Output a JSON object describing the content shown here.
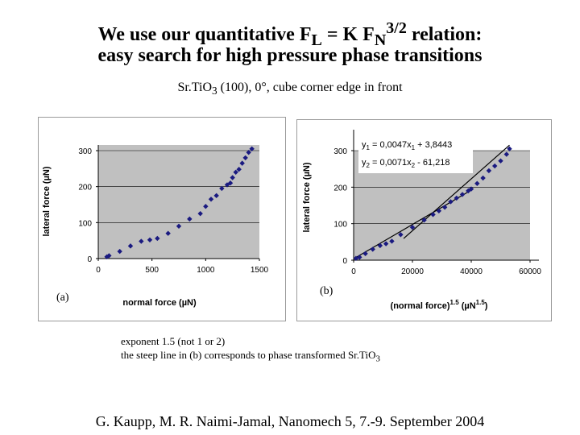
{
  "title_line1": {
    "pre": "We use our quantitative F",
    "sub1": "L",
    "mid": " = K F",
    "sub2": "N",
    "sup": "3/2",
    "post": " relation:"
  },
  "title_line2": "easy search for high pressure phase transitions",
  "subtitle": {
    "pre": "Sr.TiO",
    "sub": "3",
    "post": " (100), 0°, cube corner edge in front"
  },
  "notes": {
    "line1": "exponent 1.5 (not 1 or 2)",
    "line2_pre": "the steep line in (b) corresponds to phase transformed Sr.TiO",
    "line2_sub": "3"
  },
  "footer": "G. Kaupp, M. R. Naimi-Jamal, Nanomech 5, 7.-9. September 2004",
  "colors": {
    "plot_bg": "#c0c0c0",
    "marker": "#1a1a80",
    "fit_line": "#000000"
  },
  "chart_data": [
    {
      "panel_label": "(a)",
      "type": "scatter",
      "xlabel": "normal force (µN)",
      "ylabel": "lateral force (µN)",
      "xlim": [
        0,
        1500
      ],
      "ylim": [
        0,
        300
      ],
      "x_ticks": [
        "0",
        "500",
        "1000",
        "1500"
      ],
      "y_ticks": [
        "0",
        "100",
        "200",
        "300"
      ],
      "marker": "diamond",
      "points": [
        [
          80,
          5
        ],
        [
          100,
          8
        ],
        [
          200,
          20
        ],
        [
          300,
          35
        ],
        [
          400,
          48
        ],
        [
          480,
          52
        ],
        [
          550,
          56
        ],
        [
          650,
          70
        ],
        [
          750,
          90
        ],
        [
          850,
          110
        ],
        [
          950,
          125
        ],
        [
          1000,
          145
        ],
        [
          1050,
          165
        ],
        [
          1100,
          175
        ],
        [
          1150,
          195
        ],
        [
          1200,
          205
        ],
        [
          1230,
          210
        ],
        [
          1250,
          225
        ],
        [
          1280,
          240
        ],
        [
          1310,
          248
        ],
        [
          1340,
          265
        ],
        [
          1370,
          280
        ],
        [
          1400,
          295
        ],
        [
          1430,
          305
        ]
      ]
    },
    {
      "panel_label": "(b)",
      "type": "scatter",
      "xlabel": "(normal force)^1.5 (µN^1.5)",
      "ylabel": "lateral force (µN)",
      "xlim": [
        0,
        60000
      ],
      "ylim": [
        0,
        300
      ],
      "x_ticks": [
        "0",
        "20000",
        "40000",
        "60000"
      ],
      "y_ticks": [
        "0",
        "100",
        "200",
        "300"
      ],
      "marker": "diamond",
      "equations": {
        "eq1": {
          "pre": "y",
          "sub": "1",
          "mid": " = 0,0047x",
          "sub2": "1",
          "post": " + 3,8443"
        },
        "eq2": {
          "pre": "y",
          "sub": "2",
          "mid": " = 0,0071x",
          "sub2": "2",
          "post": " - 61,218"
        }
      },
      "fit_lines": [
        {
          "name": "y1",
          "slope": 0.0047,
          "intercept": 3.8443,
          "x_range": [
            0,
            40000
          ]
        },
        {
          "name": "y2",
          "slope": 0.0071,
          "intercept": -61.218,
          "x_range": [
            17000,
            53000
          ]
        }
      ],
      "points": [
        [
          800,
          5
        ],
        [
          2000,
          8
        ],
        [
          4000,
          18
        ],
        [
          6500,
          30
        ],
        [
          9000,
          40
        ],
        [
          11000,
          45
        ],
        [
          13000,
          52
        ],
        [
          16000,
          70
        ],
        [
          20000,
          90
        ],
        [
          24000,
          110
        ],
        [
          27000,
          125
        ],
        [
          29000,
          135
        ],
        [
          31000,
          145
        ],
        [
          33000,
          160
        ],
        [
          35000,
          170
        ],
        [
          37000,
          180
        ],
        [
          39000,
          190
        ],
        [
          40000,
          195
        ],
        [
          42000,
          210
        ],
        [
          44000,
          225
        ],
        [
          46000,
          245
        ],
        [
          48000,
          258
        ],
        [
          50000,
          272
        ],
        [
          52000,
          290
        ],
        [
          53000,
          305
        ]
      ]
    }
  ]
}
